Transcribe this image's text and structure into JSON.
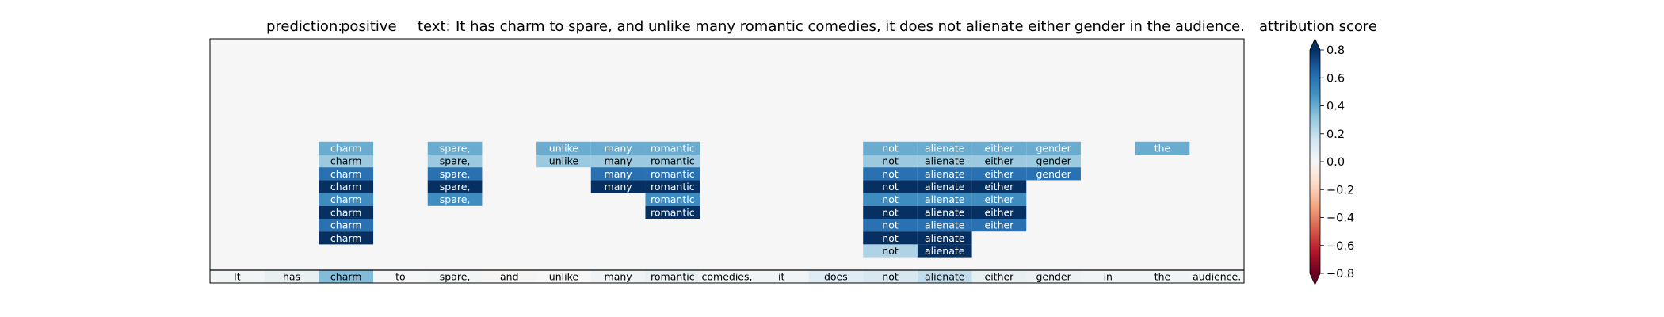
{
  "figure": {
    "prediction_label": "prediction:",
    "prediction_value": "positive",
    "text_label": "text:",
    "text_value": "It has charm to spare, and unlike many romantic comedies, it does not alienate either gender in the audience."
  },
  "colorbar": {
    "title": "attribution score",
    "tick_labels": [
      "0.8",
      "0.6",
      "0.4",
      "0.2",
      "0.0",
      "−0.2",
      "−0.4",
      "−0.6",
      "−0.8"
    ]
  },
  "chart_data": {
    "type": "heatmap",
    "colormap": "RdBu",
    "vmin": -0.8,
    "vmax": 0.8,
    "background_color": "#f5f6f5",
    "tokens": [
      "It",
      "has",
      "charm",
      "to",
      "spare,",
      "and",
      "unlike",
      "many",
      "romantic",
      "comedies,",
      "it",
      "does",
      "not",
      "alienate",
      "either",
      "gender",
      "in",
      "the",
      "audience."
    ],
    "token_row_scores": [
      0.02,
      0.06,
      0.35,
      0.01,
      0.02,
      -0.01,
      0.0,
      0.04,
      0.06,
      0.02,
      0.03,
      0.1,
      0.13,
      0.2,
      0.06,
      0.05,
      0.03,
      0.03,
      0.02
    ],
    "stacked_rows": [
      {
        "level": 10,
        "cells": [
          {
            "token": 2,
            "text": "charm",
            "score": 0.4
          },
          {
            "token": 4,
            "text": "spare,",
            "score": 0.4
          },
          {
            "token": 6,
            "text": "unlike",
            "score": 0.4
          },
          {
            "token": 7,
            "text": "many",
            "score": 0.4
          },
          {
            "token": 8,
            "text": "romantic",
            "score": 0.4
          },
          {
            "token": 12,
            "text": "not",
            "score": 0.4
          },
          {
            "token": 13,
            "text": "alienate",
            "score": 0.4
          },
          {
            "token": 14,
            "text": "either",
            "score": 0.4
          },
          {
            "token": 15,
            "text": "gender",
            "score": 0.4
          },
          {
            "token": 17,
            "text": "the",
            "score": 0.4
          }
        ]
      },
      {
        "level": 9,
        "cells": [
          {
            "token": 2,
            "text": "charm",
            "score": 0.3
          },
          {
            "token": 4,
            "text": "spare,",
            "score": 0.3
          },
          {
            "token": 6,
            "text": "unlike",
            "score": 0.3
          },
          {
            "token": 7,
            "text": "many",
            "score": 0.3
          },
          {
            "token": 8,
            "text": "romantic",
            "score": 0.3
          },
          {
            "token": 12,
            "text": "not",
            "score": 0.3
          },
          {
            "token": 13,
            "text": "alienate",
            "score": 0.3
          },
          {
            "token": 14,
            "text": "either",
            "score": 0.3
          },
          {
            "token": 15,
            "text": "gender",
            "score": 0.3
          }
        ]
      },
      {
        "level": 8,
        "cells": [
          {
            "token": 2,
            "text": "charm",
            "score": 0.6
          },
          {
            "token": 4,
            "text": "spare,",
            "score": 0.6
          },
          {
            "token": 7,
            "text": "many",
            "score": 0.6
          },
          {
            "token": 8,
            "text": "romantic",
            "score": 0.6
          },
          {
            "token": 12,
            "text": "not",
            "score": 0.6
          },
          {
            "token": 13,
            "text": "alienate",
            "score": 0.6
          },
          {
            "token": 14,
            "text": "either",
            "score": 0.6
          },
          {
            "token": 15,
            "text": "gender",
            "score": 0.6
          }
        ]
      },
      {
        "level": 7,
        "cells": [
          {
            "token": 2,
            "text": "charm",
            "score": 0.8
          },
          {
            "token": 4,
            "text": "spare,",
            "score": 0.8
          },
          {
            "token": 7,
            "text": "many",
            "score": 0.8
          },
          {
            "token": 8,
            "text": "romantic",
            "score": 0.8
          },
          {
            "token": 12,
            "text": "not",
            "score": 0.8
          },
          {
            "token": 13,
            "text": "alienate",
            "score": 0.8
          },
          {
            "token": 14,
            "text": "either",
            "score": 0.8
          }
        ]
      },
      {
        "level": 6,
        "cells": [
          {
            "token": 2,
            "text": "charm",
            "score": 0.5
          },
          {
            "token": 4,
            "text": "spare,",
            "score": 0.5
          },
          {
            "token": 8,
            "text": "romantic",
            "score": 0.5
          },
          {
            "token": 12,
            "text": "not",
            "score": 0.5
          },
          {
            "token": 13,
            "text": "alienate",
            "score": 0.5
          },
          {
            "token": 14,
            "text": "either",
            "score": 0.5
          }
        ]
      },
      {
        "level": 5,
        "cells": [
          {
            "token": 2,
            "text": "charm",
            "score": 0.8
          },
          {
            "token": 8,
            "text": "romantic",
            "score": 0.8
          },
          {
            "token": 12,
            "text": "not",
            "score": 0.8
          },
          {
            "token": 13,
            "text": "alienate",
            "score": 0.8
          },
          {
            "token": 14,
            "text": "either",
            "score": 0.8
          }
        ]
      },
      {
        "level": 4,
        "cells": [
          {
            "token": 2,
            "text": "charm",
            "score": 0.6
          },
          {
            "token": 12,
            "text": "not",
            "score": 0.6
          },
          {
            "token": 13,
            "text": "alienate",
            "score": 0.6
          },
          {
            "token": 14,
            "text": "either",
            "score": 0.6
          }
        ]
      },
      {
        "level": 3,
        "cells": [
          {
            "token": 2,
            "text": "charm",
            "score": 0.8
          },
          {
            "token": 12,
            "text": "not",
            "score": 0.8
          },
          {
            "token": 13,
            "text": "alienate",
            "score": 0.8
          }
        ]
      },
      {
        "level": 2,
        "cells": [
          {
            "token": 12,
            "text": "not",
            "score": 0.25
          },
          {
            "token": 13,
            "text": "alienate",
            "score": 0.8
          }
        ]
      }
    ]
  }
}
